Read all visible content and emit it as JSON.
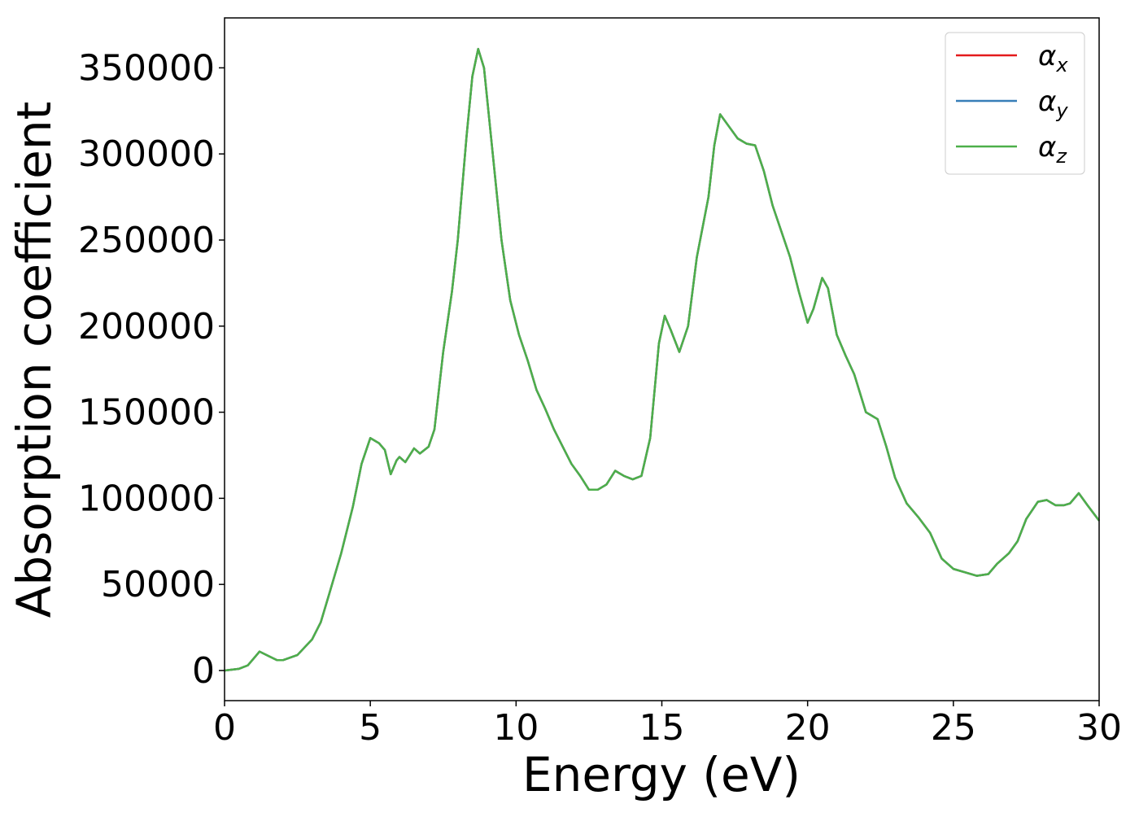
{
  "chart_data": {
    "type": "line",
    "xlabel": "Energy (eV)",
    "ylabel": "Absorption coefficient",
    "x": [
      0,
      0.5,
      0.8,
      1.0,
      1.2,
      1.5,
      1.8,
      2.0,
      2.5,
      3.0,
      3.3,
      3.6,
      4.0,
      4.4,
      4.7,
      5.0,
      5.3,
      5.5,
      5.7,
      5.9,
      6.0,
      6.2,
      6.5,
      6.7,
      7.0,
      7.2,
      7.5,
      7.8,
      8.0,
      8.3,
      8.5,
      8.7,
      8.9,
      9.2,
      9.5,
      9.8,
      10.1,
      10.4,
      10.7,
      11.0,
      11.3,
      11.6,
      11.9,
      12.2,
      12.5,
      12.8,
      13.1,
      13.4,
      13.7,
      14.0,
      14.3,
      14.6,
      14.9,
      15.1,
      15.3,
      15.6,
      15.9,
      16.2,
      16.6,
      16.8,
      17.0,
      17.3,
      17.6,
      17.9,
      18.2,
      18.5,
      18.8,
      19.1,
      19.4,
      19.7,
      20.0,
      20.2,
      20.5,
      20.7,
      21.0,
      21.3,
      21.6,
      22.0,
      22.4,
      22.7,
      23.0,
      23.4,
      23.8,
      24.2,
      24.6,
      25.0,
      25.4,
      25.8,
      26.2,
      26.5,
      26.9,
      27.2,
      27.5,
      27.9,
      28.2,
      28.5,
      28.8,
      29.0,
      29.3,
      29.6,
      30.0
    ],
    "series": [
      {
        "name": "αx",
        "color": "#e41a1c",
        "values": [
          0,
          1000,
          3000,
          7000,
          11000,
          8500,
          6000,
          6000,
          9000,
          18000,
          28000,
          45000,
          68000,
          95000,
          120000,
          135000,
          132000,
          128000,
          114000,
          122000,
          124000,
          121000,
          129000,
          126000,
          130000,
          140000,
          185000,
          220000,
          250000,
          310000,
          345000,
          361000,
          350000,
          300000,
          250000,
          215000,
          195000,
          180000,
          163000,
          152000,
          140000,
          130000,
          120000,
          113000,
          105000,
          105000,
          108000,
          116000,
          113000,
          111000,
          113000,
          135000,
          190000,
          206000,
          198000,
          185000,
          200000,
          240000,
          275000,
          305000,
          323000,
          316000,
          309000,
          306000,
          305000,
          290000,
          270000,
          255000,
          240000,
          220000,
          202000,
          210000,
          228000,
          222000,
          195000,
          183000,
          172000,
          150000,
          146000,
          130000,
          112000,
          97000,
          89000,
          80000,
          65000,
          59000,
          57000,
          55000,
          56000,
          62000,
          68000,
          75000,
          88000,
          98000,
          99000,
          96000,
          96000,
          97000,
          103000,
          96000,
          87000
        ]
      },
      {
        "name": "αy",
        "color": "#377eb8",
        "values": [
          0,
          1000,
          3000,
          7000,
          11000,
          8500,
          6000,
          6000,
          9000,
          18000,
          28000,
          45000,
          68000,
          95000,
          120000,
          135000,
          132000,
          128000,
          114000,
          122000,
          124000,
          121000,
          129000,
          126000,
          130000,
          140000,
          185000,
          220000,
          250000,
          310000,
          345000,
          361000,
          350000,
          300000,
          250000,
          215000,
          195000,
          180000,
          163000,
          152000,
          140000,
          130000,
          120000,
          113000,
          105000,
          105000,
          108000,
          116000,
          113000,
          111000,
          113000,
          135000,
          190000,
          206000,
          198000,
          185000,
          200000,
          240000,
          275000,
          305000,
          323000,
          316000,
          309000,
          306000,
          305000,
          290000,
          270000,
          255000,
          240000,
          220000,
          202000,
          210000,
          228000,
          222000,
          195000,
          183000,
          172000,
          150000,
          146000,
          130000,
          112000,
          97000,
          89000,
          80000,
          65000,
          59000,
          57000,
          55000,
          56000,
          62000,
          68000,
          75000,
          88000,
          98000,
          99000,
          96000,
          96000,
          97000,
          103000,
          96000,
          87000
        ]
      },
      {
        "name": "αz",
        "color": "#4daf4a",
        "values": [
          0,
          1000,
          3000,
          7000,
          11000,
          8500,
          6000,
          6000,
          9000,
          18000,
          28000,
          45000,
          68000,
          95000,
          120000,
          135000,
          132000,
          128000,
          114000,
          122000,
          124000,
          121000,
          129000,
          126000,
          130000,
          140000,
          185000,
          220000,
          250000,
          310000,
          345000,
          361000,
          350000,
          300000,
          250000,
          215000,
          195000,
          180000,
          163000,
          152000,
          140000,
          130000,
          120000,
          113000,
          105000,
          105000,
          108000,
          116000,
          113000,
          111000,
          113000,
          135000,
          190000,
          206000,
          198000,
          185000,
          200000,
          240000,
          275000,
          305000,
          323000,
          316000,
          309000,
          306000,
          305000,
          290000,
          270000,
          255000,
          240000,
          220000,
          202000,
          210000,
          228000,
          222000,
          195000,
          183000,
          172000,
          150000,
          146000,
          130000,
          112000,
          97000,
          89000,
          80000,
          65000,
          59000,
          57000,
          55000,
          56000,
          62000,
          68000,
          75000,
          88000,
          98000,
          99000,
          96000,
          96000,
          97000,
          103000,
          96000,
          87000
        ]
      }
    ],
    "xlim": [
      0,
      30
    ],
    "xticks": [
      0,
      5,
      10,
      15,
      20,
      25,
      30
    ],
    "ylim": [
      -17500,
      379000
    ],
    "yticks": [
      0,
      50000,
      100000,
      150000,
      200000,
      250000,
      300000,
      350000
    ],
    "grid": false,
    "legend": "upper right"
  }
}
